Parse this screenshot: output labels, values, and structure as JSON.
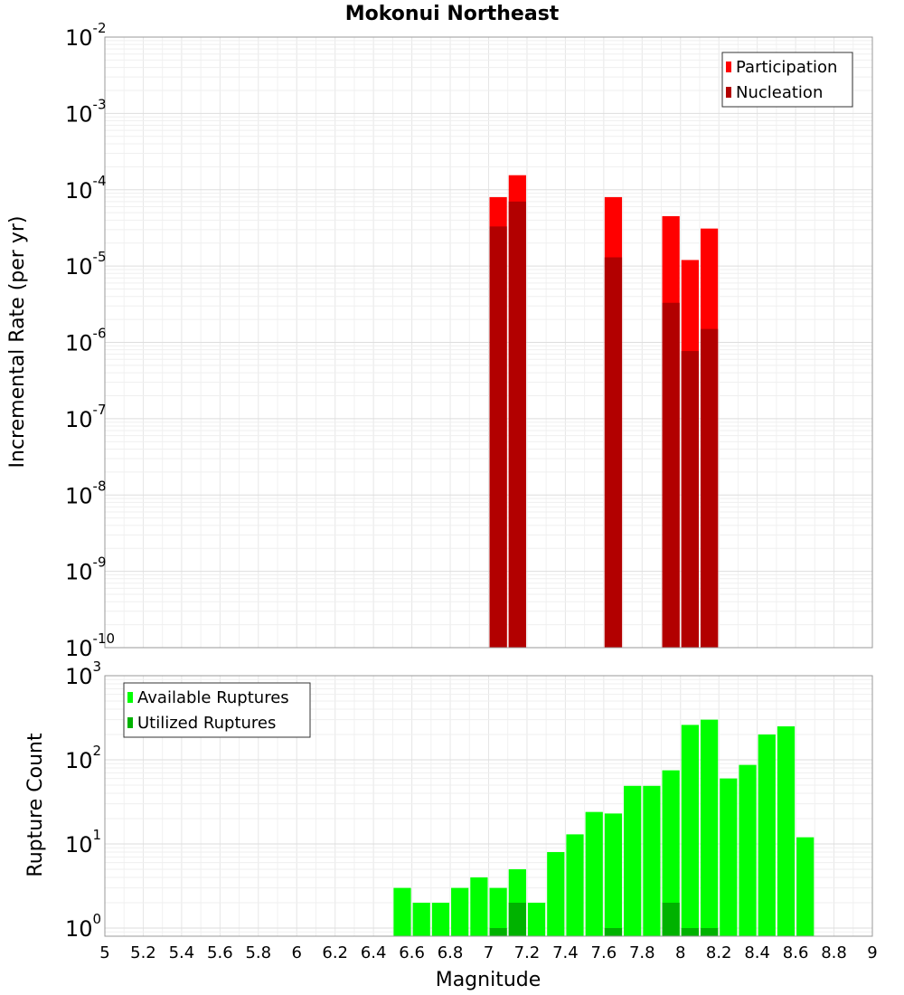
{
  "chart_data": {
    "title": "Mokonui Northeast",
    "xlabel": "Magnitude",
    "xlim": [
      5,
      9
    ],
    "x_ticks": [
      "5",
      "5.2",
      "5.4",
      "5.6",
      "5.8",
      "6",
      "6.2",
      "6.4",
      "6.6",
      "6.8",
      "7",
      "7.2",
      "7.4",
      "7.6",
      "7.8",
      "8",
      "8.2",
      "8.4",
      "8.6",
      "8.8",
      "9"
    ],
    "grid": true,
    "panels": [
      {
        "type": "bar",
        "ylabel": "Incremental Rate (per yr)",
        "yscale": "log",
        "ylim": [
          1e-10,
          0.01
        ],
        "y_ticks": [
          {
            "base": "10",
            "exp": "-10"
          },
          {
            "base": "10",
            "exp": "-9"
          },
          {
            "base": "10",
            "exp": "-8"
          },
          {
            "base": "10",
            "exp": "-7"
          },
          {
            "base": "10",
            "exp": "-6"
          },
          {
            "base": "10",
            "exp": "-5"
          },
          {
            "base": "10",
            "exp": "-4"
          },
          {
            "base": "10",
            "exp": "-3"
          },
          {
            "base": "10",
            "exp": "-2"
          }
        ],
        "legend_position": "top-right",
        "series": [
          {
            "name": "Participation",
            "color": "#ff0000",
            "x": [
              7.05,
              7.15,
              7.65,
              7.95,
              8.05,
              8.15
            ],
            "values": [
              8e-05,
              0.000155,
              8e-05,
              4.5e-05,
              1.2e-05,
              3.1e-05
            ]
          },
          {
            "name": "Nucleation",
            "color": "#b20000",
            "x": [
              7.05,
              7.15,
              7.65,
              7.95,
              8.05,
              8.15
            ],
            "values": [
              3.3e-05,
              7e-05,
              1.3e-05,
              3.3e-06,
              7.7e-07,
              1.5e-06
            ]
          }
        ]
      },
      {
        "type": "bar",
        "ylabel": "Rupture Count",
        "yscale": "log",
        "ylim": [
          0.8,
          1000
        ],
        "y_ticks": [
          {
            "base": "10",
            "exp": "0"
          },
          {
            "base": "10",
            "exp": "1"
          },
          {
            "base": "10",
            "exp": "2"
          },
          {
            "base": "10",
            "exp": "3"
          }
        ],
        "legend_position": "top-left",
        "series": [
          {
            "name": "Available Ruptures",
            "color": "#00ff00",
            "x": [
              6.55,
              6.65,
              6.75,
              6.85,
              6.95,
              7.05,
              7.15,
              7.25,
              7.35,
              7.45,
              7.55,
              7.65,
              7.75,
              7.85,
              7.95,
              8.05,
              8.15,
              8.25,
              8.35,
              8.45,
              8.55,
              8.65
            ],
            "values": [
              3,
              2,
              2,
              3,
              4,
              3,
              5,
              2,
              8,
              13,
              24,
              23,
              49,
              49,
              75,
              260,
              300,
              60,
              87,
              200,
              250,
              12
            ]
          },
          {
            "name": "Utilized Ruptures",
            "color": "#00b200",
            "x": [
              7.05,
              7.15,
              7.65,
              7.95,
              8.05,
              8.15
            ],
            "values": [
              1,
              2,
              1,
              2,
              1,
              1
            ]
          }
        ]
      }
    ]
  }
}
